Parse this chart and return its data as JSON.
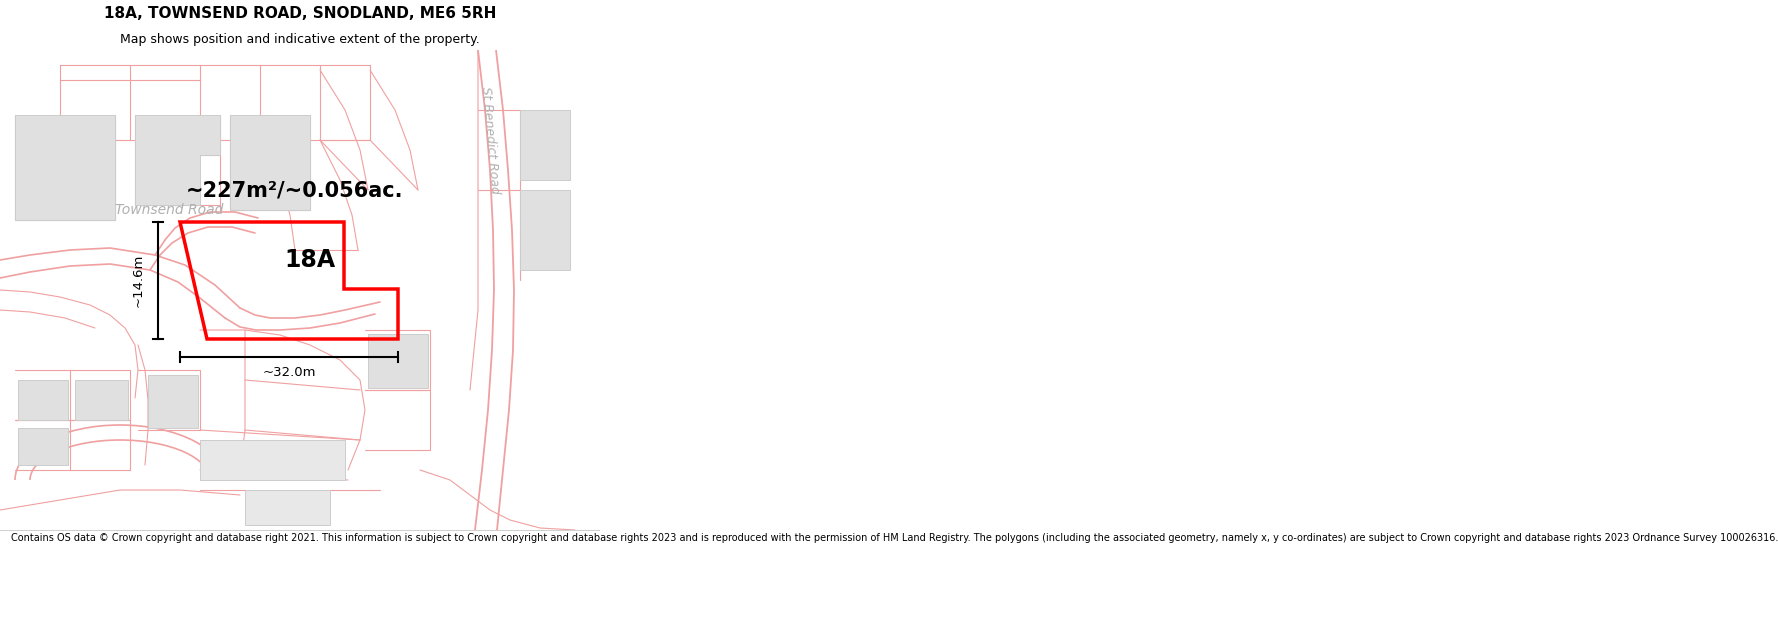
{
  "title": "18A, TOWNSEND ROAD, SNODLAND, ME6 5RH",
  "subtitle": "Map shows position and indicative extent of the property.",
  "copyright": "Contains OS data © Crown copyright and database right 2021. This information is subject to Crown copyright and database rights 2023 and is reproduced with the permission of HM Land Registry. The polygons (including the associated geometry, namely x, y co-ordinates) are subject to Crown copyright and database rights 2023 Ordnance Survey 100026316.",
  "area_label": "~227m²/~0.056ac.",
  "property_label": "18A",
  "dim_vertical": "~14.6m",
  "dim_horizontal": "~32.0m",
  "street1": "Townsend Road",
  "street2": "St Benedict Road",
  "bg_color": "#ffffff",
  "road_outline_color": "#f0a0a0",
  "building_fill": "#e8e8e8",
  "building_edge": "#cccccc",
  "property_color": "#ff0000",
  "title_fontsize": 11,
  "subtitle_fontsize": 9,
  "copyright_fontsize": 7.0,
  "street_color": "#aaaaaa"
}
